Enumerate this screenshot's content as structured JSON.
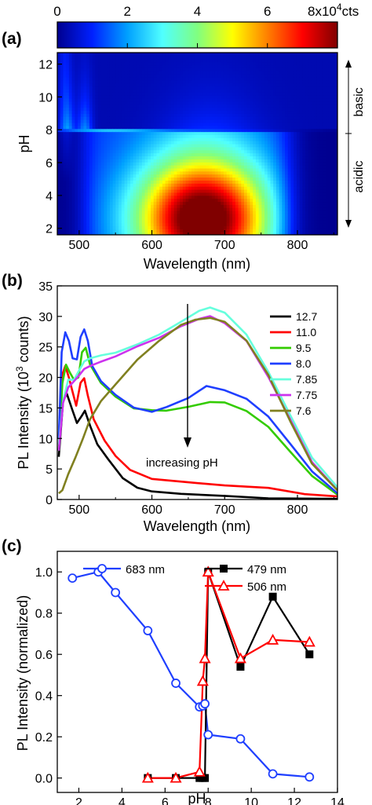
{
  "chart_data": [
    {
      "panel": "(a)",
      "type": "heatmap",
      "colorbar": {
        "ticks": [
          "0",
          "2",
          "4",
          "6"
        ],
        "max_label": "8x10",
        "max_exp": "4",
        "unit": "cts",
        "range": [
          0,
          80000
        ],
        "colors": [
          "#00008f",
          "#0020ff",
          "#00a0ff",
          "#50ffff",
          "#80ff80",
          "#ffff00",
          "#ff8000",
          "#ff0000",
          "#800000"
        ]
      },
      "xlabel": "Wavelength (nm)",
      "ylabel": "pH",
      "xlim": [
        470,
        855
      ],
      "ylim": [
        1.6,
        12.7
      ],
      "xticks": [
        "500",
        "600",
        "700",
        "800"
      ],
      "yticks": [
        "2",
        "4",
        "6",
        "8",
        "10",
        "12"
      ],
      "annotations": [
        "basic",
        "acidic"
      ],
      "z_scale": "PL counts (0–80000); high intensity 560–760 nm at pH 2–7.8, low above pH 8"
    },
    {
      "panel": "(b)",
      "type": "line",
      "xlabel": "Wavelength (nm)",
      "ylabel": "PL Intensity (10",
      "ylabel_sup": "3",
      "ylabel_tail": " counts)",
      "xlim": [
        470,
        855
      ],
      "ylim": [
        0,
        35
      ],
      "xticks": [
        "500",
        "600",
        "700",
        "800"
      ],
      "yticks": [
        "0",
        "5",
        "10",
        "15",
        "20",
        "25",
        "30",
        "35"
      ],
      "annotation": "increasing pH",
      "series": [
        {
          "name": "12.7",
          "color": "#000000",
          "x": [
            472,
            478,
            483,
            490,
            497,
            503,
            508,
            515,
            525,
            540,
            560,
            580,
            600,
            640,
            700,
            760,
            855
          ],
          "y": [
            7,
            16,
            17.5,
            15,
            12.5,
            13.5,
            14.5,
            12,
            9,
            6.5,
            3.5,
            2,
            1.2,
            0.8,
            0.5,
            0.3,
            0.1
          ]
        },
        {
          "name": "11.0",
          "color": "#ff0000",
          "x": [
            472,
            476,
            481,
            486,
            491,
            496,
            502,
            507,
            512,
            520,
            535,
            550,
            570,
            600,
            650,
            700,
            760,
            810,
            855
          ],
          "y": [
            10,
            20,
            22,
            20,
            17.5,
            15.5,
            19,
            20,
            17,
            13,
            9.5,
            7,
            5,
            3.5,
            2.7,
            2.4,
            1.8,
            1,
            0.5
          ]
        },
        {
          "name": "9.5",
          "color": "#33cc00",
          "x": [
            472,
            477,
            482,
            487,
            493,
            499,
            504,
            509,
            515,
            530,
            550,
            575,
            600,
            620,
            650,
            680,
            700,
            730,
            760,
            790,
            820,
            855
          ],
          "y": [
            8,
            19,
            22,
            21,
            19.5,
            20,
            24,
            25,
            22,
            19,
            17,
            15,
            14.5,
            14.7,
            15.3,
            16,
            15.8,
            14.5,
            12,
            8,
            4,
            0.8
          ]
        },
        {
          "name": "8.0",
          "color": "#1f3fff",
          "x": [
            472,
            476,
            481,
            486,
            491,
            497,
            502,
            507,
            512,
            518,
            530,
            550,
            575,
            600,
            620,
            650,
            675,
            700,
            730,
            760,
            790,
            820,
            855
          ],
          "y": [
            10,
            24,
            27.5,
            26,
            23,
            23,
            26.5,
            28,
            26,
            22,
            19.5,
            17,
            15,
            14.5,
            15,
            16.5,
            18.5,
            18,
            16.5,
            13.5,
            9,
            4.5,
            1
          ]
        },
        {
          "name": "7.85",
          "color": "#66ffdd",
          "x": [
            472,
            478,
            485,
            493,
            500,
            507,
            515,
            530,
            550,
            580,
            610,
            640,
            665,
            680,
            700,
            730,
            760,
            790,
            820,
            855
          ],
          "y": [
            9,
            16,
            19.5,
            19.5,
            21,
            22.5,
            23,
            23.5,
            24.2,
            25.5,
            27,
            29,
            31,
            31.5,
            30.5,
            27,
            21,
            14,
            7,
            2
          ]
        },
        {
          "name": "7.75",
          "color": "#cc33ee",
          "x": [
            472,
            478,
            485,
            493,
            500,
            507,
            515,
            530,
            550,
            580,
            610,
            640,
            665,
            680,
            700,
            730,
            760,
            790,
            820,
            855
          ],
          "y": [
            8,
            16,
            18.5,
            19.5,
            20.5,
            21.5,
            22,
            22.7,
            23.3,
            25,
            26.5,
            28.5,
            29.5,
            30,
            29,
            26,
            20,
            13,
            6,
            1.5
          ]
        },
        {
          "name": "7.6",
          "color": "#808020",
          "x": [
            472,
            477,
            485,
            495,
            505,
            515,
            530,
            550,
            580,
            610,
            640,
            660,
            680,
            700,
            730,
            760,
            790,
            820,
            855
          ],
          "y": [
            1,
            1.5,
            4,
            7,
            10,
            13,
            16,
            19,
            23,
            26,
            28.5,
            29.5,
            29.8,
            29,
            26,
            20.5,
            13,
            6,
            1.5
          ]
        }
      ]
    },
    {
      "panel": "(c)",
      "type": "line",
      "xlabel": "pH",
      "ylabel": "PL Intensity (normalized)",
      "xlim": [
        1,
        14
      ],
      "ylim": [
        -0.07,
        1.1
      ],
      "xticks": [
        "2",
        "4",
        "6",
        "8",
        "10",
        "12",
        "14"
      ],
      "yticks": [
        "0.0",
        "0.2",
        "0.4",
        "0.6",
        "0.8",
        "1.0"
      ],
      "series": [
        {
          "name": "683 nm",
          "color": "#1f3fff",
          "marker": "circle",
          "x": [
            1.7,
            2.9,
            3.7,
            5.2,
            6.5,
            7.6,
            7.75,
            7.85,
            8.0,
            9.5,
            11.0,
            12.7
          ],
          "y": [
            0.97,
            1.0,
            0.9,
            0.715,
            0.46,
            0.345,
            0.35,
            0.36,
            0.21,
            0.19,
            0.02,
            0.005
          ]
        },
        {
          "name": "479 nm",
          "color": "#000000",
          "marker": "square",
          "x": [
            5.2,
            6.5,
            7.6,
            7.75,
            7.85,
            8.0,
            9.5,
            11.0,
            12.7
          ],
          "y": [
            0.0,
            0.0,
            0.0,
            0.0,
            0.0,
            1.0,
            0.54,
            0.88,
            0.6
          ]
        },
        {
          "name": "506 nm",
          "color": "#ff0000",
          "marker": "triangle",
          "x": [
            5.2,
            6.5,
            7.6,
            7.75,
            7.85,
            8.0,
            9.5,
            11.0,
            12.7
          ],
          "y": [
            0.0,
            0.0,
            0.03,
            0.47,
            0.58,
            1.0,
            0.58,
            0.67,
            0.66
          ]
        }
      ]
    }
  ]
}
